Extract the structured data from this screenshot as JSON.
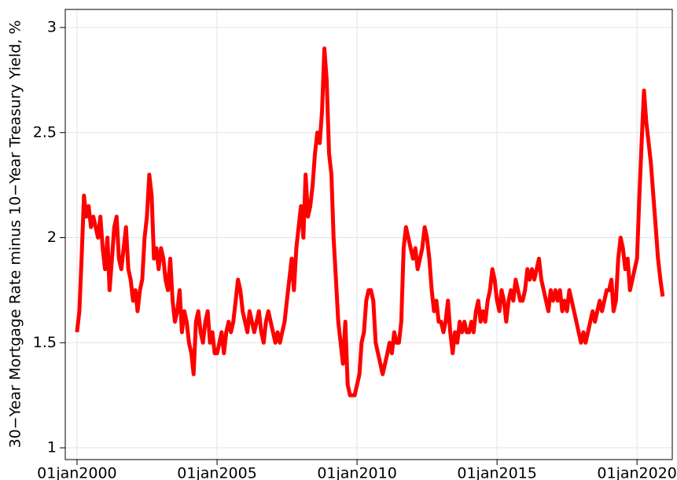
{
  "chart_data": {
    "type": "line",
    "y_label": "30−Year Mortgage Rate minus 10−Year Treasury Yield, %",
    "color": "#ff0000",
    "grid": true,
    "ylim": [
      0.944,
      3.086
    ],
    "yticks": [
      1,
      1.5,
      2,
      2.5,
      3
    ],
    "xlim": [
      "1999-08-01",
      "2021-04-05"
    ],
    "xticks": [
      {
        "value": "2000-01-01",
        "label": "01jan2000"
      },
      {
        "value": "2005-01-01",
        "label": "01jan2005"
      },
      {
        "value": "2010-01-01",
        "label": "01jan2010"
      },
      {
        "value": "2015-01-01",
        "label": "01jan2015"
      },
      {
        "value": "2020-01-01",
        "label": "01jan2020"
      }
    ],
    "x": [
      "2000-01-01",
      "2000-02-01",
      "2000-03-01",
      "2000-04-01",
      "2000-05-01",
      "2000-06-01",
      "2000-07-01",
      "2000-08-01",
      "2000-09-01",
      "2000-10-01",
      "2000-11-01",
      "2000-12-01",
      "2001-01-01",
      "2001-02-01",
      "2001-03-01",
      "2001-04-01",
      "2001-05-01",
      "2001-06-01",
      "2001-07-01",
      "2001-08-01",
      "2001-09-01",
      "2001-10-01",
      "2001-11-01",
      "2001-12-01",
      "2002-01-01",
      "2002-02-01",
      "2002-03-01",
      "2002-04-01",
      "2002-05-01",
      "2002-06-01",
      "2002-07-01",
      "2002-08-01",
      "2002-09-01",
      "2002-10-01",
      "2002-11-01",
      "2002-12-01",
      "2003-01-01",
      "2003-02-01",
      "2003-03-01",
      "2003-04-01",
      "2003-05-01",
      "2003-06-01",
      "2003-07-01",
      "2003-08-01",
      "2003-09-01",
      "2003-10-01",
      "2003-11-01",
      "2003-12-01",
      "2004-01-01",
      "2004-02-01",
      "2004-03-01",
      "2004-04-01",
      "2004-05-01",
      "2004-06-01",
      "2004-07-01",
      "2004-08-01",
      "2004-09-01",
      "2004-10-01",
      "2004-11-01",
      "2004-12-01",
      "2005-01-01",
      "2005-02-01",
      "2005-03-01",
      "2005-04-01",
      "2005-05-01",
      "2005-06-01",
      "2005-07-01",
      "2005-08-01",
      "2005-09-01",
      "2005-10-01",
      "2005-11-01",
      "2005-12-01",
      "2006-01-01",
      "2006-02-01",
      "2006-03-01",
      "2006-04-01",
      "2006-05-01",
      "2006-06-01",
      "2006-07-01",
      "2006-08-01",
      "2006-09-01",
      "2006-10-01",
      "2006-11-01",
      "2006-12-01",
      "2007-01-01",
      "2007-02-01",
      "2007-03-01",
      "2007-04-01",
      "2007-05-01",
      "2007-06-01",
      "2007-07-01",
      "2007-08-01",
      "2007-09-01",
      "2007-10-01",
      "2007-11-01",
      "2007-12-01",
      "2008-01-01",
      "2008-02-01",
      "2008-03-01",
      "2008-04-01",
      "2008-05-01",
      "2008-06-01",
      "2008-07-01",
      "2008-08-01",
      "2008-09-01",
      "2008-10-01",
      "2008-11-01",
      "2008-12-01",
      "2009-01-01",
      "2009-02-01",
      "2009-03-01",
      "2009-04-01",
      "2009-05-01",
      "2009-06-01",
      "2009-07-01",
      "2009-08-01",
      "2009-09-01",
      "2009-10-01",
      "2009-11-01",
      "2009-12-01",
      "2010-01-01",
      "2010-02-01",
      "2010-03-01",
      "2010-04-01",
      "2010-05-01",
      "2010-06-01",
      "2010-07-01",
      "2010-08-01",
      "2010-09-01",
      "2010-10-01",
      "2010-11-01",
      "2010-12-01",
      "2011-01-01",
      "2011-02-01",
      "2011-03-01",
      "2011-04-01",
      "2011-05-01",
      "2011-06-01",
      "2011-07-01",
      "2011-08-01",
      "2011-09-01",
      "2011-10-01",
      "2011-11-01",
      "2011-12-01",
      "2012-01-01",
      "2012-02-01",
      "2012-03-01",
      "2012-04-01",
      "2012-05-01",
      "2012-06-01",
      "2012-07-01",
      "2012-08-01",
      "2012-09-01",
      "2012-10-01",
      "2012-11-01",
      "2012-12-01",
      "2013-01-01",
      "2013-02-01",
      "2013-03-01",
      "2013-04-01",
      "2013-05-01",
      "2013-06-01",
      "2013-07-01",
      "2013-08-01",
      "2013-09-01",
      "2013-10-01",
      "2013-11-01",
      "2013-12-01",
      "2014-01-01",
      "2014-02-01",
      "2014-03-01",
      "2014-04-01",
      "2014-05-01",
      "2014-06-01",
      "2014-07-01",
      "2014-08-01",
      "2014-09-01",
      "2014-10-01",
      "2014-11-01",
      "2014-12-01",
      "2015-01-01",
      "2015-02-01",
      "2015-03-01",
      "2015-04-01",
      "2015-05-01",
      "2015-06-01",
      "2015-07-01",
      "2015-08-01",
      "2015-09-01",
      "2015-10-01",
      "2015-11-01",
      "2015-12-01",
      "2016-01-01",
      "2016-02-01",
      "2016-03-01",
      "2016-04-01",
      "2016-05-01",
      "2016-06-01",
      "2016-07-01",
      "2016-08-01",
      "2016-09-01",
      "2016-10-01",
      "2016-11-01",
      "2016-12-01",
      "2017-01-01",
      "2017-02-01",
      "2017-03-01",
      "2017-04-01",
      "2017-05-01",
      "2017-06-01",
      "2017-07-01",
      "2017-08-01",
      "2017-09-01",
      "2017-10-01",
      "2017-11-01",
      "2017-12-01",
      "2018-01-01",
      "2018-02-01",
      "2018-03-01",
      "2018-04-01",
      "2018-05-01",
      "2018-06-01",
      "2018-07-01",
      "2018-08-01",
      "2018-09-01",
      "2018-10-01",
      "2018-11-01",
      "2018-12-01",
      "2019-01-01",
      "2019-02-01",
      "2019-03-01",
      "2019-04-01",
      "2019-05-01",
      "2019-06-01",
      "2019-07-01",
      "2019-08-01",
      "2019-09-01",
      "2019-10-01",
      "2019-11-01",
      "2019-12-01",
      "2020-01-01",
      "2020-02-01",
      "2020-03-01",
      "2020-04-01",
      "2020-05-01",
      "2020-06-01",
      "2020-07-01",
      "2020-08-01",
      "2020-09-01",
      "2020-10-01",
      "2020-11-01",
      "2020-12-01"
    ],
    "values": [
      1.55,
      1.65,
      1.9,
      2.2,
      2.1,
      2.15,
      2.05,
      2.1,
      2.05,
      2.0,
      2.1,
      1.95,
      1.85,
      2.0,
      1.75,
      1.9,
      2.05,
      2.1,
      1.9,
      1.85,
      1.95,
      2.05,
      1.85,
      1.8,
      1.7,
      1.75,
      1.65,
      1.75,
      1.8,
      2.0,
      2.1,
      2.3,
      2.2,
      1.9,
      1.95,
      1.85,
      1.95,
      1.9,
      1.8,
      1.75,
      1.9,
      1.7,
      1.6,
      1.65,
      1.75,
      1.55,
      1.65,
      1.6,
      1.5,
      1.45,
      1.35,
      1.6,
      1.65,
      1.55,
      1.5,
      1.6,
      1.65,
      1.5,
      1.55,
      1.45,
      1.45,
      1.5,
      1.55,
      1.45,
      1.55,
      1.6,
      1.55,
      1.6,
      1.7,
      1.8,
      1.75,
      1.65,
      1.6,
      1.55,
      1.65,
      1.6,
      1.55,
      1.6,
      1.65,
      1.55,
      1.5,
      1.6,
      1.65,
      1.6,
      1.55,
      1.5,
      1.55,
      1.5,
      1.55,
      1.6,
      1.7,
      1.8,
      1.9,
      1.75,
      1.95,
      2.05,
      2.15,
      2.0,
      2.3,
      2.1,
      2.15,
      2.25,
      2.4,
      2.5,
      2.45,
      2.6,
      2.9,
      2.75,
      2.4,
      2.3,
      2.0,
      1.8,
      1.6,
      1.5,
      1.4,
      1.6,
      1.3,
      1.25,
      1.25,
      1.25,
      1.3,
      1.35,
      1.5,
      1.55,
      1.7,
      1.75,
      1.75,
      1.7,
      1.5,
      1.45,
      1.4,
      1.35,
      1.4,
      1.45,
      1.5,
      1.45,
      1.55,
      1.5,
      1.5,
      1.6,
      1.95,
      2.05,
      2.0,
      1.95,
      1.9,
      1.95,
      1.85,
      1.9,
      1.95,
      2.05,
      2.0,
      1.9,
      1.75,
      1.65,
      1.7,
      1.6,
      1.6,
      1.55,
      1.6,
      1.7,
      1.55,
      1.45,
      1.55,
      1.5,
      1.6,
      1.55,
      1.6,
      1.55,
      1.55,
      1.6,
      1.55,
      1.65,
      1.7,
      1.6,
      1.65,
      1.6,
      1.7,
      1.75,
      1.85,
      1.8,
      1.7,
      1.65,
      1.75,
      1.7,
      1.6,
      1.7,
      1.75,
      1.7,
      1.8,
      1.75,
      1.7,
      1.7,
      1.75,
      1.85,
      1.8,
      1.85,
      1.8,
      1.85,
      1.9,
      1.8,
      1.75,
      1.7,
      1.65,
      1.75,
      1.7,
      1.75,
      1.7,
      1.75,
      1.65,
      1.7,
      1.65,
      1.75,
      1.7,
      1.65,
      1.6,
      1.55,
      1.5,
      1.55,
      1.5,
      1.55,
      1.6,
      1.65,
      1.6,
      1.65,
      1.7,
      1.65,
      1.7,
      1.75,
      1.75,
      1.8,
      1.65,
      1.7,
      1.9,
      2.0,
      1.95,
      1.85,
      1.9,
      1.75,
      1.8,
      1.85,
      1.9,
      2.2,
      2.45,
      2.7,
      2.55,
      2.45,
      2.35,
      2.2,
      2.05,
      1.9,
      1.8,
      1.72
    ]
  }
}
